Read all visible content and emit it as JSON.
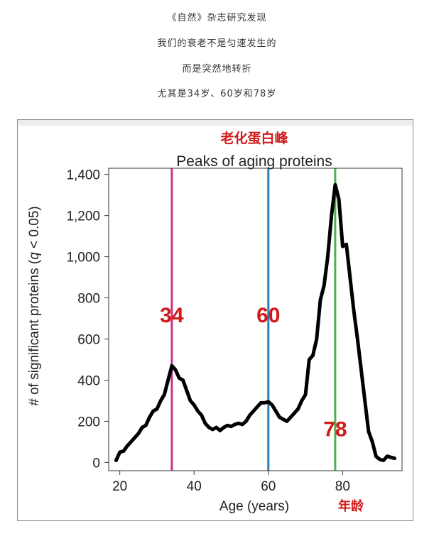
{
  "captions": [
    "《自然》杂志研究发现",
    "我们的衰老不是匀速发生的",
    "而是突然地转折",
    "尤其是34岁、60岁和78岁"
  ],
  "chart_data": {
    "type": "line",
    "title_cn": "老化蛋白峰",
    "title": "Peaks of aging proteins",
    "xlabel": "Age (years)",
    "xlabel_cn": "年龄",
    "ylabel_prefix": "# of significant proteins (",
    "ylabel_var": "q",
    "ylabel_suffix": " < 0.05)",
    "xlim": [
      17,
      96
    ],
    "ylim": [
      -40,
      1430
    ],
    "xticks": [
      20,
      40,
      60,
      80
    ],
    "xtick_labels": [
      "20",
      "40",
      "60",
      "80"
    ],
    "yticks": [
      0,
      200,
      400,
      600,
      800,
      1000,
      1200,
      1400
    ],
    "ytick_labels": [
      "0",
      "200",
      "400",
      "600",
      "800",
      "1,000",
      "1,200",
      "1,400"
    ],
    "series": [
      {
        "color": "#000000",
        "x": [
          19,
          20,
          21,
          22,
          23,
          24,
          25,
          26,
          27,
          28,
          29,
          30,
          31,
          32,
          33,
          34,
          35,
          36,
          37,
          38,
          39,
          40,
          41,
          42,
          43,
          44,
          45,
          46,
          47,
          48,
          49,
          50,
          51,
          52,
          53,
          54,
          55,
          56,
          57,
          58,
          59,
          60,
          61,
          62,
          63,
          64,
          65,
          66,
          67,
          68,
          69,
          70,
          71,
          72,
          73,
          74,
          75,
          76,
          77,
          78,
          79,
          80,
          81,
          82,
          83,
          84,
          85,
          86,
          87,
          88,
          89,
          90,
          91,
          92,
          93,
          94
        ],
        "values": [
          10,
          50,
          55,
          80,
          100,
          120,
          140,
          170,
          180,
          220,
          250,
          260,
          300,
          330,
          400,
          470,
          450,
          410,
          400,
          350,
          300,
          280,
          250,
          230,
          190,
          170,
          160,
          170,
          155,
          170,
          180,
          175,
          185,
          190,
          185,
          200,
          230,
          250,
          270,
          290,
          290,
          295,
          280,
          250,
          220,
          210,
          200,
          220,
          240,
          260,
          300,
          330,
          500,
          520,
          600,
          790,
          860,
          1000,
          1200,
          1350,
          1280,
          1050,
          1060,
          900,
          740,
          600,
          450,
          300,
          150,
          100,
          30,
          15,
          10,
          30,
          25,
          20
        ]
      }
    ],
    "markers": [
      {
        "x": 34,
        "label": "34",
        "color": "#c2358f",
        "label_y": 720
      },
      {
        "x": 60,
        "label": "60",
        "color": "#2a7fb8",
        "label_y": 720
      },
      {
        "x": 78,
        "label": "78",
        "color": "#4fae4f",
        "label_y": 165
      }
    ],
    "label_color": "#d11a1a",
    "grid": false,
    "legend": "none"
  }
}
